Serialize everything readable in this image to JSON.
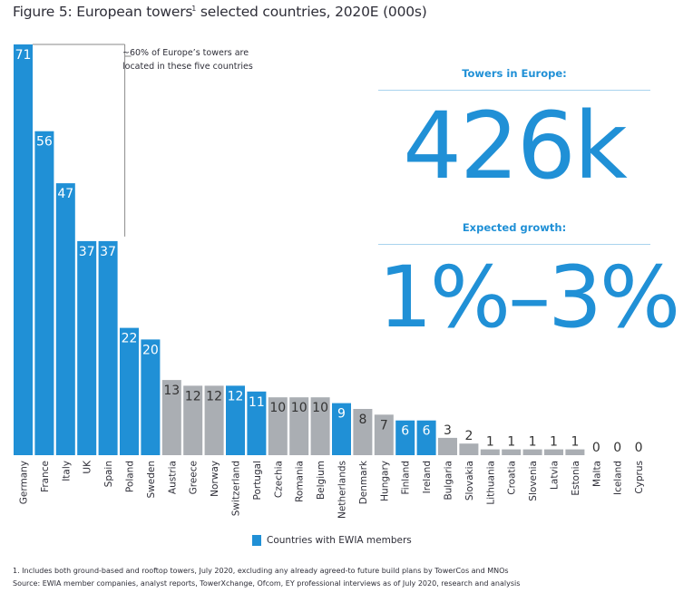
{
  "title": {
    "text": "Figure 5: European towers",
    "footnote_marker": "1",
    "suffix": " selected countries, 2020E (000s)"
  },
  "annotation": {
    "text_line1": "~60% of Europe’s towers are",
    "text_line2": "located in these five countries"
  },
  "kpis": {
    "towers_heading": "Towers in Europe:",
    "towers_value": "426k",
    "growth_heading": "Expected growth:",
    "growth_value": "1%–3%"
  },
  "legend": {
    "label": "Countries with EWIA members"
  },
  "footnotes": {
    "note1": "1. Includes both ground-based and rooftop towers, July 2020, excluding any already agreed-to future build plans by TowerCos and MNOs",
    "source": "Source: EWIA member companies, analyst reports, TowerXchange, Ofcom, EY professional interviews as of July 2020, research and analysis"
  },
  "colors": {
    "ewia_member": "#2090d6",
    "non_member": "#aaaeb3",
    "label_on_member": "#ffffff",
    "label_on_non_member": "#333333",
    "label_zero": "#333333"
  },
  "chart_data": {
    "type": "bar",
    "title": "European towers, selected countries, 2020E (000s)",
    "xlabel": "",
    "ylabel": "",
    "ylim": [
      0,
      71
    ],
    "grid": false,
    "legend_position": "bottom-center",
    "categories": [
      "Germany",
      "France",
      "Italy",
      "UK",
      "Spain",
      "Poland",
      "Sweden",
      "Austria",
      "Greece",
      "Norway",
      "Switzerland",
      "Portugal",
      "Czechia",
      "Romania",
      "Belgium",
      "Netherlands",
      "Denmark",
      "Hungary",
      "Finland",
      "Ireland",
      "Bulgaria",
      "Slovakia",
      "Lithuania",
      "Croatia",
      "Slovenia",
      "Latvia",
      "Estonia",
      "Malta",
      "Iceland",
      "Cyprus"
    ],
    "values": [
      71,
      56,
      47,
      37,
      37,
      22,
      20,
      13,
      12,
      12,
      12,
      11,
      10,
      10,
      10,
      9,
      8,
      7,
      6,
      6,
      3,
      2,
      1,
      1,
      1,
      1,
      1,
      0,
      0,
      0
    ],
    "ewia_member": [
      true,
      true,
      true,
      true,
      true,
      true,
      true,
      false,
      false,
      false,
      true,
      true,
      false,
      false,
      false,
      true,
      false,
      false,
      true,
      true,
      false,
      false,
      false,
      false,
      false,
      false,
      false,
      false,
      false,
      false
    ],
    "series": [
      {
        "name": "Countries with EWIA members",
        "highlight": "ewia_member"
      }
    ],
    "annotations": [
      {
        "text": "~60% of Europe’s towers are located in these five countries",
        "spans": [
          "Germany",
          "France",
          "Italy",
          "UK",
          "Spain"
        ]
      }
    ]
  }
}
